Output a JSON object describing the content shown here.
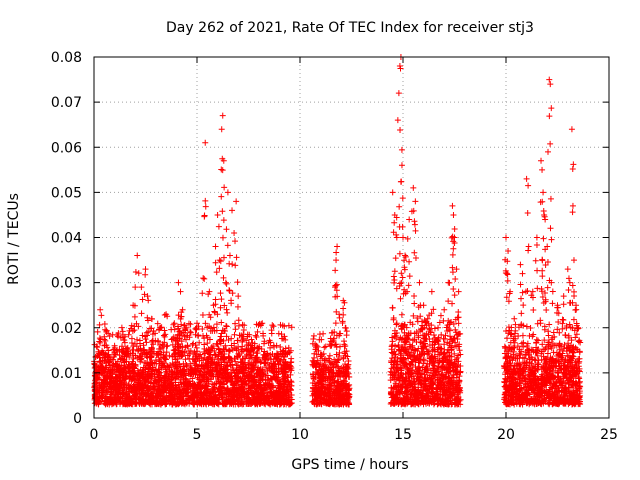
{
  "chart_data": {
    "type": "scatter",
    "title": "Day 262 of 2021, Rate Of TEC Index for receiver stj3",
    "xlabel": "GPS time / hours",
    "ylabel": "ROTI / TECUs",
    "xlim": [
      0,
      25
    ],
    "ylim": [
      0,
      0.08
    ],
    "xticks": [
      "0",
      "5",
      "10",
      "15",
      "20",
      "25"
    ],
    "yticks": [
      "0",
      "0.01",
      "0.02",
      "0.03",
      "0.04",
      "0.05",
      "0.06",
      "0.07",
      "0.08"
    ],
    "grid": true,
    "marker": "+",
    "color": "#ff0000",
    "series": [
      {
        "name": "ROTI",
        "segments": [
          {
            "t_start": 0.0,
            "t_end": 9.6,
            "base_min": 0.003,
            "base_max": 0.013
          },
          {
            "t_start": 10.6,
            "t_end": 12.4,
            "base_min": 0.003,
            "base_max": 0.011
          },
          {
            "t_start": 14.4,
            "t_end": 17.8,
            "base_min": 0.003,
            "base_max": 0.015
          },
          {
            "t_start": 19.9,
            "t_end": 23.6,
            "base_min": 0.003,
            "base_max": 0.013
          }
        ],
        "spikes": [
          {
            "t": 0.3,
            "y": 0.024
          },
          {
            "t": 0.5,
            "y": 0.018
          },
          {
            "t": 1.0,
            "y": 0.016
          },
          {
            "t": 1.5,
            "y": 0.018
          },
          {
            "t": 1.9,
            "y": 0.025
          },
          {
            "t": 2.0,
            "y": 0.029
          },
          {
            "t": 2.1,
            "y": 0.036
          },
          {
            "t": 2.3,
            "y": 0.029
          },
          {
            "t": 2.5,
            "y": 0.033
          },
          {
            "t": 2.6,
            "y": 0.027
          },
          {
            "t": 2.8,
            "y": 0.022
          },
          {
            "t": 3.2,
            "y": 0.02
          },
          {
            "t": 3.5,
            "y": 0.023
          },
          {
            "t": 3.9,
            "y": 0.021
          },
          {
            "t": 4.1,
            "y": 0.03
          },
          {
            "t": 4.2,
            "y": 0.028
          },
          {
            "t": 4.3,
            "y": 0.024
          },
          {
            "t": 4.5,
            "y": 0.02
          },
          {
            "t": 5.0,
            "y": 0.021
          },
          {
            "t": 5.3,
            "y": 0.031
          },
          {
            "t": 5.4,
            "y": 0.061
          },
          {
            "t": 5.6,
            "y": 0.028
          },
          {
            "t": 5.8,
            "y": 0.025
          },
          {
            "t": 5.9,
            "y": 0.038
          },
          {
            "t": 6.0,
            "y": 0.045
          },
          {
            "t": 6.1,
            "y": 0.035
          },
          {
            "t": 6.2,
            "y": 0.064
          },
          {
            "t": 6.25,
            "y": 0.067
          },
          {
            "t": 6.3,
            "y": 0.057
          },
          {
            "t": 6.4,
            "y": 0.03
          },
          {
            "t": 6.5,
            "y": 0.05
          },
          {
            "t": 6.6,
            "y": 0.036
          },
          {
            "t": 6.7,
            "y": 0.046
          },
          {
            "t": 6.8,
            "y": 0.041
          },
          {
            "t": 6.9,
            "y": 0.048
          },
          {
            "t": 7.0,
            "y": 0.027
          },
          {
            "t": 7.2,
            "y": 0.018
          },
          {
            "t": 7.6,
            "y": 0.016
          },
          {
            "t": 8.3,
            "y": 0.014
          },
          {
            "t": 9.2,
            "y": 0.015
          },
          {
            "t": 10.8,
            "y": 0.016
          },
          {
            "t": 11.0,
            "y": 0.014
          },
          {
            "t": 11.5,
            "y": 0.017
          },
          {
            "t": 11.7,
            "y": 0.029
          },
          {
            "t": 11.75,
            "y": 0.035
          },
          {
            "t": 11.8,
            "y": 0.038
          },
          {
            "t": 11.9,
            "y": 0.023
          },
          {
            "t": 12.1,
            "y": 0.026
          },
          {
            "t": 12.2,
            "y": 0.02
          },
          {
            "t": 14.5,
            "y": 0.05
          },
          {
            "t": 14.6,
            "y": 0.045
          },
          {
            "t": 14.7,
            "y": 0.04
          },
          {
            "t": 14.75,
            "y": 0.066
          },
          {
            "t": 14.8,
            "y": 0.072
          },
          {
            "t": 14.85,
            "y": 0.078
          },
          {
            "t": 14.9,
            "y": 0.08
          },
          {
            "t": 14.95,
            "y": 0.056
          },
          {
            "t": 15.0,
            "y": 0.04
          },
          {
            "t": 15.1,
            "y": 0.036
          },
          {
            "t": 15.2,
            "y": 0.028
          },
          {
            "t": 15.3,
            "y": 0.044
          },
          {
            "t": 15.5,
            "y": 0.051
          },
          {
            "t": 15.6,
            "y": 0.048
          },
          {
            "t": 15.8,
            "y": 0.03
          },
          {
            "t": 16.0,
            "y": 0.025
          },
          {
            "t": 16.2,
            "y": 0.022
          },
          {
            "t": 16.4,
            "y": 0.028
          },
          {
            "t": 16.7,
            "y": 0.02
          },
          {
            "t": 17.0,
            "y": 0.024
          },
          {
            "t": 17.2,
            "y": 0.03
          },
          {
            "t": 17.4,
            "y": 0.047
          },
          {
            "t": 17.45,
            "y": 0.045
          },
          {
            "t": 17.5,
            "y": 0.04
          },
          {
            "t": 17.6,
            "y": 0.033
          },
          {
            "t": 17.7,
            "y": 0.028
          },
          {
            "t": 20.0,
            "y": 0.04
          },
          {
            "t": 20.1,
            "y": 0.037
          },
          {
            "t": 20.2,
            "y": 0.028
          },
          {
            "t": 20.4,
            "y": 0.022
          },
          {
            "t": 20.7,
            "y": 0.034
          },
          {
            "t": 20.8,
            "y": 0.032
          },
          {
            "t": 21.0,
            "y": 0.053
          },
          {
            "t": 21.1,
            "y": 0.038
          },
          {
            "t": 21.3,
            "y": 0.028
          },
          {
            "t": 21.5,
            "y": 0.04
          },
          {
            "t": 21.7,
            "y": 0.057
          },
          {
            "t": 21.75,
            "y": 0.055
          },
          {
            "t": 21.8,
            "y": 0.05
          },
          {
            "t": 21.85,
            "y": 0.045
          },
          {
            "t": 21.9,
            "y": 0.044
          },
          {
            "t": 22.0,
            "y": 0.038
          },
          {
            "t": 22.1,
            "y": 0.075
          },
          {
            "t": 22.15,
            "y": 0.074
          },
          {
            "t": 22.2,
            "y": 0.03
          },
          {
            "t": 22.5,
            "y": 0.025
          },
          {
            "t": 22.8,
            "y": 0.027
          },
          {
            "t": 23.0,
            "y": 0.033
          },
          {
            "t": 23.1,
            "y": 0.03
          },
          {
            "t": 23.2,
            "y": 0.064
          },
          {
            "t": 23.25,
            "y": 0.047
          },
          {
            "t": 23.3,
            "y": 0.035
          },
          {
            "t": 23.4,
            "y": 0.025
          },
          {
            "t": 23.5,
            "y": 0.02
          }
        ]
      }
    ]
  }
}
